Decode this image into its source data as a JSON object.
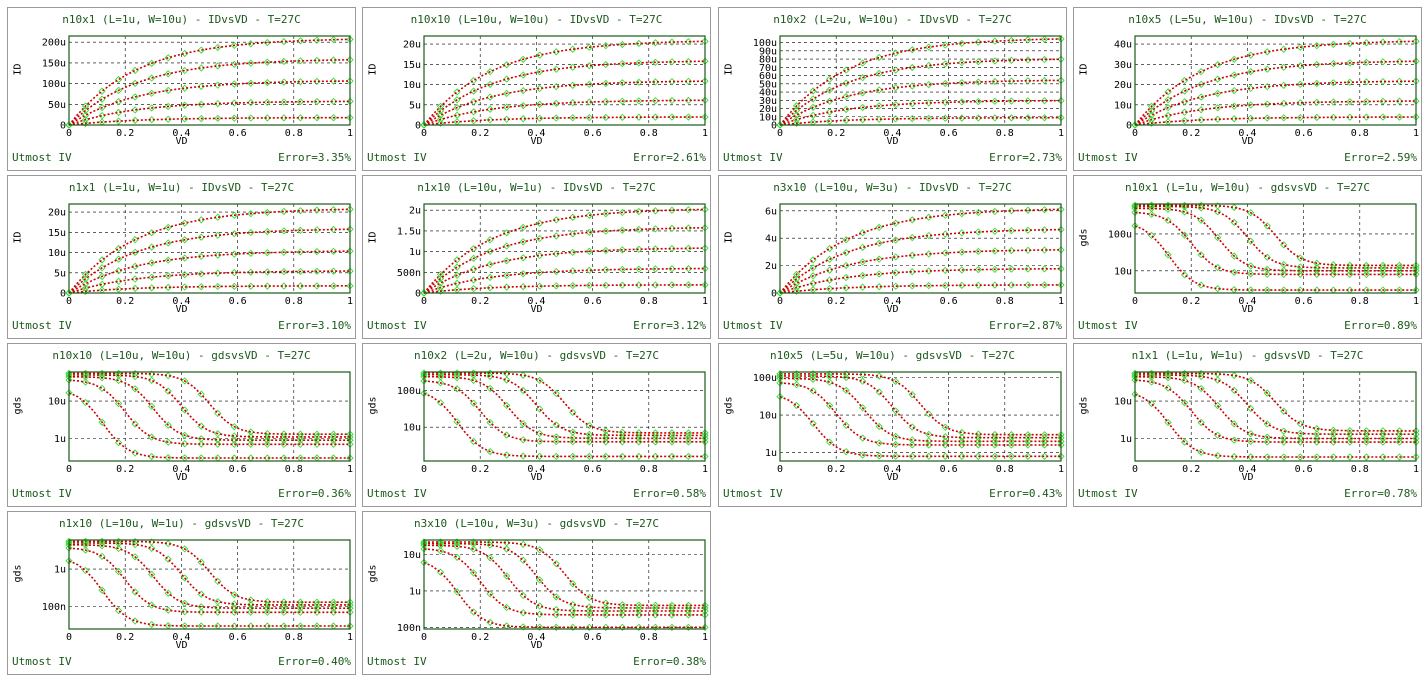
{
  "colors": {
    "model": "#cc0000",
    "measured": "#33dd33",
    "frame": "#1a5a1a",
    "grid": "#000000"
  },
  "chart_data": [
    {
      "type": "scatter",
      "curve": "id",
      "title": "n10x1 (L=1u, W=10u) - IDvsVD - T=27C",
      "xlabel": "VD",
      "ylabel": "ID",
      "ytick_values": [
        0,
        50,
        100,
        150,
        200
      ],
      "ytick_labels": [
        "0",
        "50u",
        "100u",
        "150u",
        "200u"
      ],
      "ylim": [
        0,
        215
      ],
      "xticks": [
        "0",
        "0.2",
        "0.4",
        "0.6",
        "0.8",
        "1"
      ],
      "xlim": [
        0,
        1
      ],
      "sat": [
        210,
        160,
        108,
        58,
        18
      ],
      "footer_left": "Utmost IV",
      "footer_right": "Error=3.35%"
    },
    {
      "type": "scatter",
      "curve": "id",
      "title": "n10x10 (L=10u, W=10u) - IDvsVD - T=27C",
      "xlabel": "VD",
      "ylabel": "ID",
      "ytick_values": [
        0,
        5,
        10,
        15,
        20
      ],
      "ytick_labels": [
        "0",
        "5u",
        "10u",
        "15u",
        "20u"
      ],
      "ylim": [
        0,
        22
      ],
      "xticks": [
        "0",
        "0.2",
        "0.4",
        "0.6",
        "0.8",
        "1"
      ],
      "xlim": [
        0,
        1
      ],
      "sat": [
        21,
        16,
        11,
        6.2,
        2
      ],
      "footer_left": "Utmost IV",
      "footer_right": "Error=2.61%"
    },
    {
      "type": "scatter",
      "curve": "id",
      "title": "n10x2 (L=2u, W=10u) - IDvsVD - T=27C",
      "xlabel": "VD",
      "ylabel": "ID",
      "ytick_values": [
        0,
        10,
        20,
        30,
        40,
        50,
        60,
        70,
        80,
        90,
        100
      ],
      "ytick_labels": [
        "0",
        "10u",
        "20u",
        "30u",
        "40u",
        "50u",
        "60u",
        "70u",
        "80u",
        "90u",
        "100u"
      ],
      "ylim": [
        0,
        108
      ],
      "xticks": [
        "0",
        "0.2",
        "0.4",
        "0.6",
        "0.8",
        "1"
      ],
      "xlim": [
        0,
        1
      ],
      "sat": [
        106,
        81,
        55,
        30,
        9
      ],
      "footer_left": "Utmost IV",
      "footer_right": "Error=2.73%"
    },
    {
      "type": "scatter",
      "curve": "id",
      "title": "n10x5 (L=5u, W=10u) - IDvsVD - T=27C",
      "xlabel": "VD",
      "ylabel": "ID",
      "ytick_values": [
        0,
        10,
        20,
        30,
        40
      ],
      "ytick_labels": [
        "0",
        "10u",
        "20u",
        "30u",
        "40u"
      ],
      "ylim": [
        0,
        44
      ],
      "xticks": [
        "0",
        "0.2",
        "0.4",
        "0.6",
        "0.8",
        "1"
      ],
      "xlim": [
        0,
        1
      ],
      "sat": [
        42,
        32,
        22,
        12,
        4
      ],
      "footer_left": "Utmost IV",
      "footer_right": "Error=2.59%"
    },
    {
      "type": "scatter",
      "curve": "id",
      "title": "n1x1 (L=1u, W=1u) - IDvsVD - T=27C",
      "xlabel": "VD",
      "ylabel": "ID",
      "ytick_values": [
        0,
        5,
        10,
        15,
        20
      ],
      "ytick_labels": [
        "0",
        "5u",
        "10u",
        "15u",
        "20u"
      ],
      "ylim": [
        0,
        22
      ],
      "xticks": [
        "0",
        "0.2",
        "0.4",
        "0.6",
        "0.8",
        "1"
      ],
      "xlim": [
        0,
        1
      ],
      "sat": [
        21,
        16,
        10.5,
        5.5,
        1.8
      ],
      "footer_left": "Utmost IV",
      "footer_right": "Error=3.10%"
    },
    {
      "type": "scatter",
      "curve": "id",
      "title": "n1x10 (L=10u, W=1u) - IDvsVD - T=27C",
      "xlabel": "VD",
      "ylabel": "ID",
      "ytick_values": [
        0,
        0.5,
        1,
        1.5,
        2
      ],
      "ytick_labels": [
        "0",
        "500n",
        "1u",
        "1.5u",
        "2u"
      ],
      "ylim": [
        0,
        2.15
      ],
      "xticks": [
        "0",
        "0.2",
        "0.4",
        "0.6",
        "0.8",
        "1"
      ],
      "xlim": [
        0,
        1
      ],
      "sat": [
        2.05,
        1.6,
        1.1,
        0.6,
        0.2
      ],
      "footer_left": "Utmost IV",
      "footer_right": "Error=3.12%"
    },
    {
      "type": "scatter",
      "curve": "id",
      "title": "n3x10 (L=10u, W=3u) - IDvsVD - T=27C",
      "xlabel": "VD",
      "ylabel": "ID",
      "ytick_values": [
        0,
        2,
        4,
        6
      ],
      "ytick_labels": [
        "0",
        "2u",
        "4u",
        "6u"
      ],
      "ylim": [
        0,
        6.5
      ],
      "xticks": [
        "0",
        "0.2",
        "0.4",
        "0.6",
        "0.8",
        "1"
      ],
      "xlim": [
        0,
        1
      ],
      "sat": [
        6.2,
        4.7,
        3.2,
        1.8,
        0.6
      ],
      "footer_left": "Utmost IV",
      "footer_right": "Error=2.87%"
    },
    {
      "type": "scatter",
      "curve": "gds",
      "title": "n10x1 (L=1u, W=10u) - gdsvsVD - T=27C",
      "xlabel": "VD",
      "ylabel": "gds",
      "ytick_values": [
        10,
        100
      ],
      "ytick_labels": [
        "10u",
        "100u"
      ],
      "ylim": [
        2.5,
        650
      ],
      "xticks": [
        "0",
        "0.2",
        "0.4",
        "0.6",
        "0.8",
        "1"
      ],
      "xlim": [
        0,
        1
      ],
      "g0": [
        600,
        560,
        500,
        400,
        220
      ],
      "gsat": [
        14,
        12,
        10,
        8,
        3
      ],
      "vk": [
        0.5,
        0.4,
        0.3,
        0.2,
        0.12
      ],
      "footer_left": "Utmost IV",
      "footer_right": "Error=0.89%"
    },
    {
      "type": "scatter",
      "curve": "gds",
      "title": "n10x10 (L=10u, W=10u) - gdsvsVD - T=27C",
      "xlabel": "VD",
      "ylabel": "gds",
      "ytick_values": [
        1,
        10
      ],
      "ytick_labels": [
        "1u",
        "10u"
      ],
      "ylim": [
        0.25,
        60
      ],
      "xticks": [
        "0",
        "0.2",
        "0.4",
        "0.6",
        "0.8",
        "1"
      ],
      "xlim": [
        0,
        1
      ],
      "g0": [
        55,
        50,
        45,
        38,
        22
      ],
      "gsat": [
        1.3,
        1.1,
        0.9,
        0.7,
        0.3
      ],
      "vk": [
        0.5,
        0.4,
        0.3,
        0.2,
        0.12
      ],
      "footer_left": "Utmost IV",
      "footer_right": "Error=0.36%"
    },
    {
      "type": "scatter",
      "curve": "gds",
      "title": "n10x2 (L=2u, W=10u) - gdsvsVD - T=27C",
      "xlabel": "VD",
      "ylabel": "gds",
      "ytick_values": [
        10,
        100
      ],
      "ytick_labels": [
        "10u",
        "100u"
      ],
      "ylim": [
        1.2,
        320
      ],
      "xticks": [
        "0",
        "0.2",
        "0.4",
        "0.6",
        "0.8",
        "1"
      ],
      "xlim": [
        0,
        1
      ],
      "g0": [
        300,
        270,
        240,
        190,
        110
      ],
      "gsat": [
        7,
        6,
        5,
        4,
        1.6
      ],
      "vk": [
        0.5,
        0.4,
        0.3,
        0.2,
        0.12
      ],
      "footer_left": "Utmost IV",
      "footer_right": "Error=0.58%"
    },
    {
      "type": "scatter",
      "curve": "gds",
      "title": "n10x5 (L=5u, W=10u) - gdsvsVD - T=27C",
      "xlabel": "VD",
      "ylabel": "gds",
      "ytick_values": [
        1,
        10,
        100
      ],
      "ytick_labels": [
        "1u",
        "10u",
        "100u"
      ],
      "ylim": [
        0.6,
        140
      ],
      "xticks": [
        "0",
        "0.2",
        "0.4",
        "0.6",
        "0.8",
        "1"
      ],
      "xlim": [
        0,
        1
      ],
      "g0": [
        125,
        110,
        95,
        75,
        40
      ],
      "gsat": [
        3,
        2.5,
        2,
        1.6,
        0.8
      ],
      "vk": [
        0.5,
        0.4,
        0.3,
        0.2,
        0.12
      ],
      "footer_left": "Utmost IV",
      "footer_right": "Error=0.43%"
    },
    {
      "type": "scatter",
      "curve": "gds",
      "title": "n1x1 (L=1u, W=1u) - gdsvsVD - T=27C",
      "xlabel": "VD",
      "ylabel": "gds",
      "ytick_values": [
        1,
        10
      ],
      "ytick_labels": [
        "1u",
        "10u"
      ],
      "ylim": [
        0.25,
        60
      ],
      "xticks": [
        "0",
        "0.2",
        "0.4",
        "0.6",
        "0.8",
        "1"
      ],
      "xlim": [
        0,
        1
      ],
      "g0": [
        55,
        50,
        45,
        38,
        20
      ],
      "gsat": [
        1.6,
        1.3,
        1,
        0.8,
        0.32
      ],
      "vk": [
        0.5,
        0.4,
        0.3,
        0.2,
        0.12
      ],
      "footer_left": "Utmost IV",
      "footer_right": "Error=0.78%"
    },
    {
      "type": "scatter",
      "curve": "gds",
      "title": "n1x10 (L=10u, W=1u) - gdsvsVD - T=27C",
      "xlabel": "VD",
      "ylabel": "gds",
      "ytick_values": [
        0.1,
        1
      ],
      "ytick_labels": [
        "100n",
        "1u"
      ],
      "ylim": [
        0.025,
        6
      ],
      "xticks": [
        "0",
        "0.2",
        "0.4",
        "0.6",
        "0.8",
        "1"
      ],
      "xlim": [
        0,
        1
      ],
      "g0": [
        5.5,
        5,
        4.5,
        3.8,
        2.2
      ],
      "gsat": [
        0.13,
        0.11,
        0.09,
        0.07,
        0.03
      ],
      "vk": [
        0.5,
        0.4,
        0.3,
        0.2,
        0.12
      ],
      "footer_left": "Utmost IV",
      "footer_right": "Error=0.40%"
    },
    {
      "type": "scatter",
      "curve": "gds",
      "title": "n3x10 (L=10u, W=3u) - gdsvsVD - T=27C",
      "xlabel": "VD",
      "ylabel": "gds",
      "ytick_values": [
        0.1,
        1,
        10
      ],
      "ytick_labels": [
        "100n",
        "1u",
        "10u"
      ],
      "ylim": [
        0.09,
        25
      ],
      "xticks": [
        "0",
        "0.2",
        "0.4",
        "0.6",
        "0.8",
        "1"
      ],
      "xlim": [
        0,
        1
      ],
      "g0": [
        22,
        20,
        18,
        15,
        8
      ],
      "gsat": [
        0.4,
        0.34,
        0.28,
        0.22,
        0.1
      ],
      "vk": [
        0.5,
        0.4,
        0.3,
        0.2,
        0.12
      ],
      "footer_left": "Utmost IV",
      "footer_right": "Error=0.38%"
    }
  ]
}
